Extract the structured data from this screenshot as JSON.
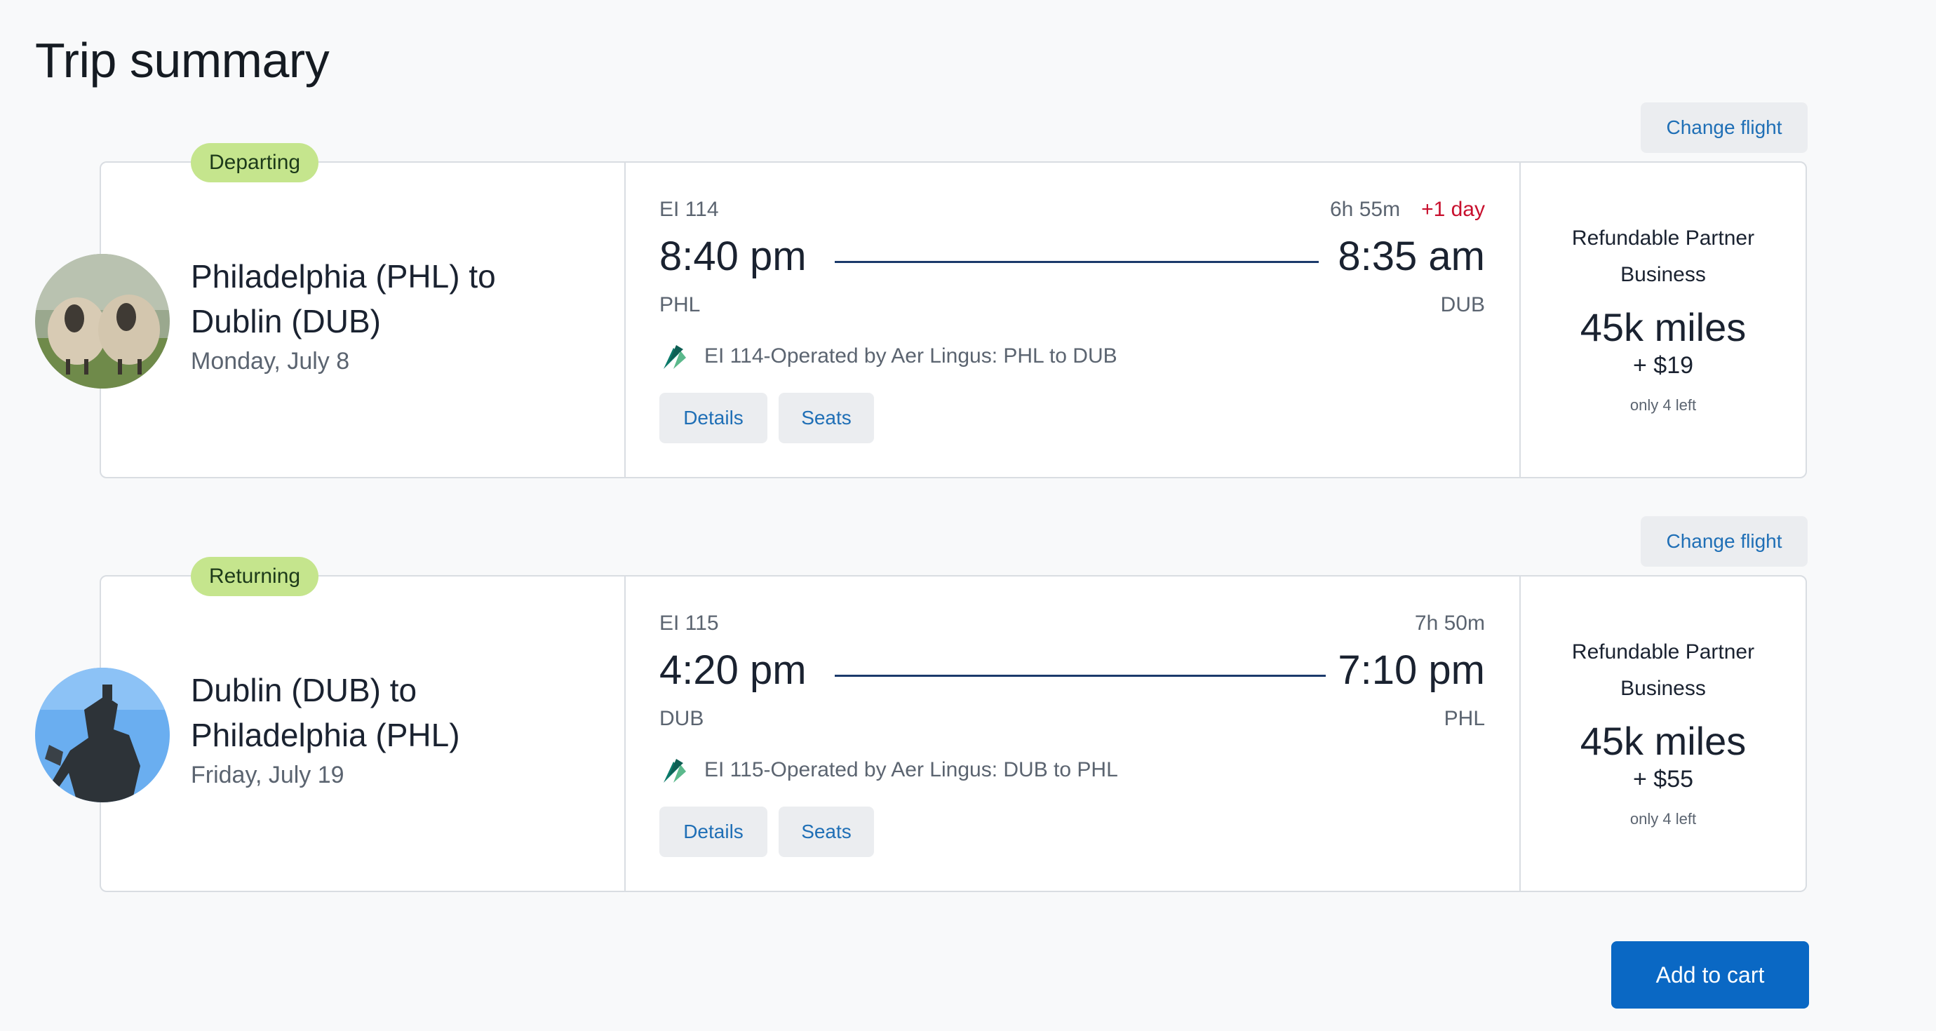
{
  "page": {
    "title": "Trip summary"
  },
  "colors": {
    "accent": "#0a68c4",
    "badge": "#c5e58d",
    "next_day": "#c8102e",
    "timeline": "#1b3a6b"
  },
  "trips": [
    {
      "badge": "Departing",
      "change_label": "Change flight",
      "avatar_icon": "sheep-photo",
      "route_line1": "Philadelphia (PHL) to",
      "route_line2": "Dublin (DUB)",
      "date": "Monday, July 8",
      "flight_no": "EI 114",
      "duration": "6h 55m",
      "next_day": "+1 day",
      "depart_time": "8:40 pm",
      "arrive_time": "8:35 am",
      "depart_code": "PHL",
      "arrive_code": "DUB",
      "operated_by": "EI 114-Operated by Aer Lingus: PHL to DUB",
      "details_label": "Details",
      "seats_label": "Seats",
      "fare_line1": "Refundable Partner",
      "fare_line2": "Business",
      "miles": "45k miles",
      "tax": "+ $19",
      "availability": "only 4 left"
    },
    {
      "badge": "Returning",
      "change_label": "Change flight",
      "avatar_icon": "statue-photo",
      "route_line1": "Dublin (DUB) to",
      "route_line2": "Philadelphia (PHL)",
      "date": "Friday, July 19",
      "flight_no": "EI 115",
      "duration": "7h 50m",
      "next_day": "",
      "depart_time": "4:20 pm",
      "arrive_time": "7:10 pm",
      "depart_code": "DUB",
      "arrive_code": "PHL",
      "operated_by": "EI 115-Operated by Aer Lingus: DUB to PHL",
      "details_label": "Details",
      "seats_label": "Seats",
      "fare_line1": "Refundable Partner",
      "fare_line2": "Business",
      "miles": "45k miles",
      "tax": "+ $55",
      "availability": "only 4 left"
    }
  ],
  "footer": {
    "add_to_cart_label": "Add to cart"
  },
  "airline_icon": "aer-lingus-shamrock-icon"
}
